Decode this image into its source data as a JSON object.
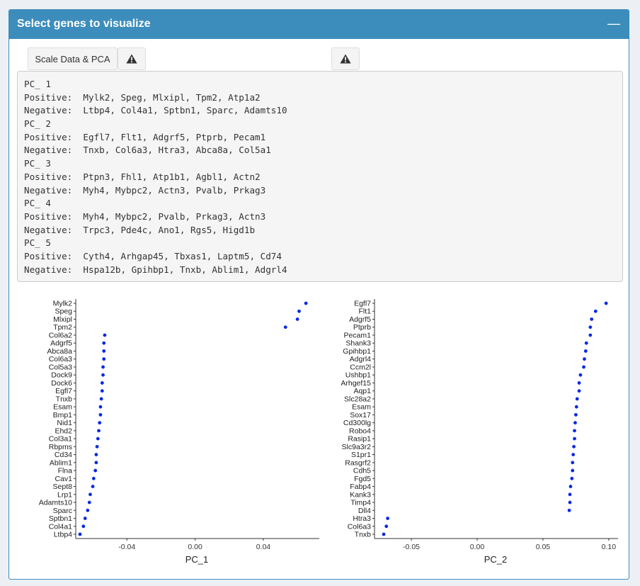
{
  "panel": {
    "title": "Select genes to visualize",
    "collapse_icon": "minus-icon"
  },
  "toolbar": {
    "scale_button_label": "Scale Data & PCA",
    "warning_icon": "warning-triangle-icon"
  },
  "console_lines": [
    "PC_ 1",
    "Positive:  Mylk2, Speg, Mlxipl, Tpm2, Atp1a2",
    "Negative:  Ltbp4, Col4a1, Sptbn1, Sparc, Adamts10",
    "PC_ 2",
    "Positive:  Egfl7, Flt1, Adgrf5, Ptprb, Pecam1",
    "Negative:  Tnxb, Col6a3, Htra3, Abca8a, Col5a1",
    "PC_ 3",
    "Positive:  Ptpn3, Fhl1, Atp1b1, Agbl1, Actn2",
    "Negative:  Myh4, Mybpc2, Actn3, Pvalb, Prkag3",
    "PC_ 4",
    "Positive:  Myh4, Mybpc2, Pvalb, Prkag3, Actn3",
    "Negative:  Trpc3, Pde4c, Ano1, Rgs5, Higd1b",
    "PC_ 5",
    "Positive:  Cyth4, Arhgap45, Tbxas1, Laptm5, Cd74",
    "Negative:  Hspa12b, Gpihbp1, Tnxb, Ablim1, Adgrl4"
  ],
  "chart_data": [
    {
      "type": "scatter",
      "xlabel": "PC_1",
      "ylabel": "",
      "xlim": [
        -0.07,
        0.072
      ],
      "xticks": [
        -0.04,
        0.0,
        0.04
      ],
      "xtick_labels": [
        "-0.04",
        "0.00",
        "0.04"
      ],
      "point_color": "#0a2ae6",
      "grid": false,
      "genes": [
        "Mylk2",
        "Speg",
        "Mlxipl",
        "Tpm2",
        "Col6a2",
        "Adgrf5",
        "Abca8a",
        "Col6a3",
        "Col5a3",
        "Dock9",
        "Dock6",
        "Egfl7",
        "Tnxb",
        "Esam",
        "Bmp1",
        "Nid1",
        "Ehd2",
        "Col3a1",
        "Rbpms",
        "Cd34",
        "Ablim1",
        "Flna",
        "Cav1",
        "Sept8",
        "Lrp1",
        "Adamts10",
        "Sparc",
        "Sptbn1",
        "Col4a1",
        "Ltbp4"
      ],
      "values": [
        0.065,
        0.061,
        0.06,
        0.053,
        -0.053,
        -0.0535,
        -0.0535,
        -0.0535,
        -0.054,
        -0.054,
        -0.0545,
        -0.0545,
        -0.055,
        -0.0555,
        -0.0555,
        -0.056,
        -0.0565,
        -0.057,
        -0.0575,
        -0.058,
        -0.058,
        -0.0585,
        -0.0595,
        -0.06,
        -0.0615,
        -0.062,
        -0.063,
        -0.0645,
        -0.0655,
        -0.0675
      ]
    },
    {
      "type": "scatter",
      "xlabel": "PC_2",
      "ylabel": "",
      "xlim": [
        -0.078,
        0.106
      ],
      "xticks": [
        -0.05,
        0.0,
        0.05,
        0.1
      ],
      "xtick_labels": [
        "-0.05",
        "0.00",
        "0.05",
        "0.10"
      ],
      "point_color": "#0a2ae6",
      "grid": false,
      "genes": [
        "Egfl7",
        "Flt1",
        "Adgrf5",
        "Ptprb",
        "Pecam1",
        "Shank3",
        "Gpihbp1",
        "Adgrl4",
        "Ccm2l",
        "Ushbp1",
        "Arhgef15",
        "Aqp1",
        "Slc28a2",
        "Esam",
        "Sox17",
        "Cd300lg",
        "Robo4",
        "Rasip1",
        "Slc9a3r2",
        "S1pr1",
        "Rasgrf2",
        "Cdh5",
        "Fgd5",
        "Fabp4",
        "Kank3",
        "Timp4",
        "Dll4",
        "Htra3",
        "Col6a3",
        "Tnxb"
      ],
      "values": [
        0.098,
        0.09,
        0.087,
        0.086,
        0.086,
        0.083,
        0.0825,
        0.0815,
        0.081,
        0.0785,
        0.0775,
        0.0775,
        0.076,
        0.0755,
        0.075,
        0.0745,
        0.074,
        0.074,
        0.0735,
        0.073,
        0.0725,
        0.0725,
        0.072,
        0.071,
        0.0705,
        0.0705,
        0.07,
        -0.068,
        -0.069,
        -0.071
      ]
    }
  ]
}
